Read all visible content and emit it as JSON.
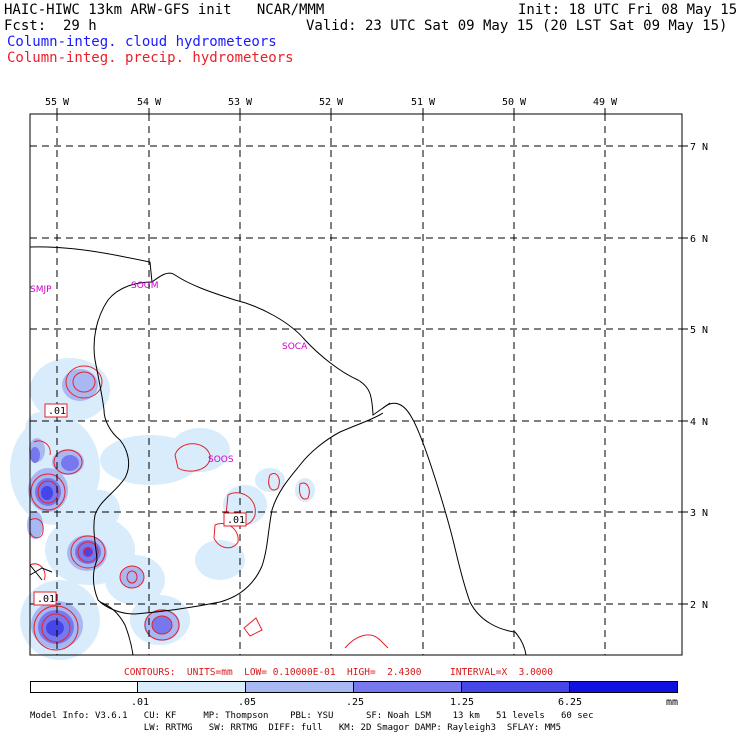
{
  "header": {
    "title_left": "HAIC-HIWC 13km ARW-GFS init   NCAR/MMM",
    "init": "Init: 18 UTC Fri 08 May 15",
    "fcst_label": "Fcst:",
    "fcst_value": "29 h",
    "valid": "Valid: 23 UTC Sat 09 May 15 (20 LST Sat 09 May 15)",
    "field1": "Column-integ. cloud hydrometeors",
    "field2": "Column-integ. precip. hydrometeors"
  },
  "colors": {
    "cloud_field": "#1a1aff",
    "precip_field": "#e8202a",
    "station_label": "#cc00cc"
  },
  "axes": {
    "longitude_labels": [
      "55 W",
      "54 W",
      "53 W",
      "52 W",
      "51 W",
      "50 W",
      "49 W"
    ],
    "latitude_labels": [
      "7 N",
      "6 N",
      "5 N",
      "4 N",
      "3 N",
      "2 N"
    ]
  },
  "stations": [
    "SMJP",
    "SOGM",
    "SOCA",
    "SOOS"
  ],
  "contour_labels": [
    ".01",
    ".01",
    ".01"
  ],
  "contours_info": {
    "text": "CONTOURS:  UNITS=mm  LOW= 0.10000E-01  HIGH=  2.4300     INTERVAL=X  3.0000"
  },
  "colorbar": {
    "tick_labels": [
      ".01",
      ".05",
      ".25",
      "1.25",
      "6.25"
    ],
    "units": "mm",
    "colors": [
      "#ffffff",
      "#d8ecfb",
      "#a8b8f2",
      "#7878ee",
      "#4646e8",
      "#1010e0"
    ]
  },
  "model_info": {
    "line1": "Model Info: V3.6.1   CU: KF     MP: Thompson    PBL: YSU      SF: Noah LSM    13 km   51 levels   60 sec",
    "line2": "                     LW: RRTMG   SW: RRTMG  DIFF: full   KM: 2D Smagor DAMP: Rayleigh3  SFLAY: MM5"
  }
}
